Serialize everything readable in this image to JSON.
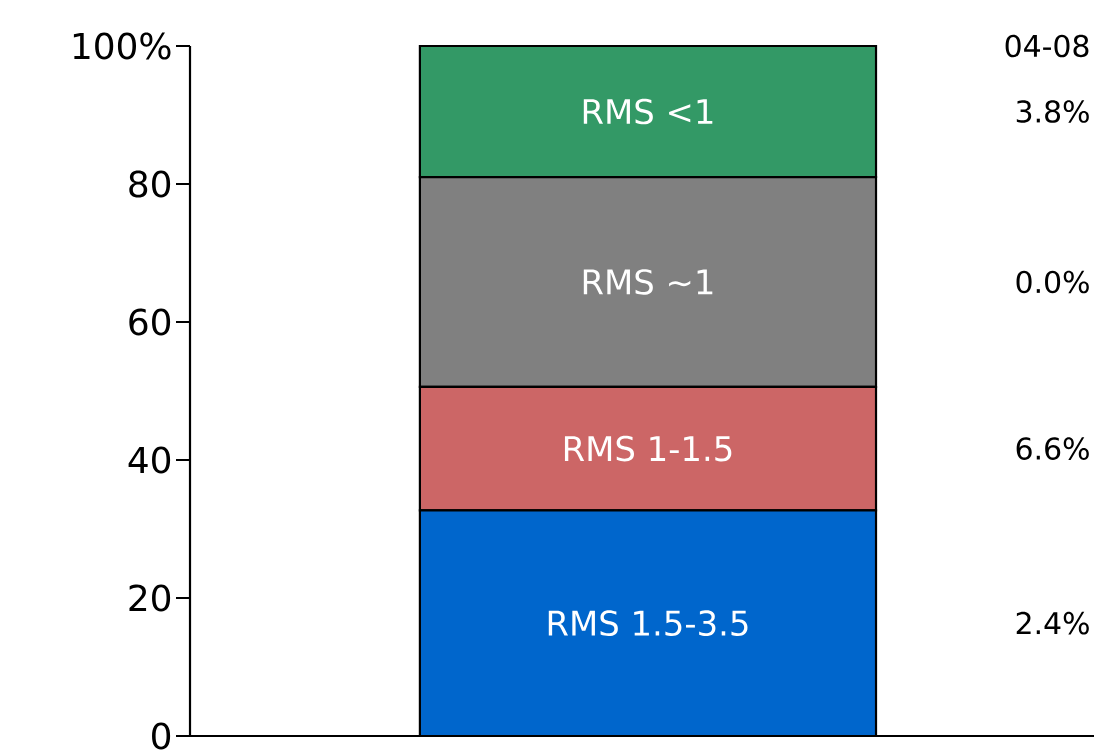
{
  "chart_data": {
    "type": "bar",
    "stacked": true,
    "categories": [
      null
    ],
    "series": [
      {
        "name": "RMS  1.5-3.5",
        "color": "#0066cc",
        "values": [
          32.7
        ]
      },
      {
        "name": "RMS  1-1.5",
        "color": "#cc6666",
        "values": [
          17.9
        ]
      },
      {
        "name": "RMS  ~1",
        "color": "#808080",
        "values": [
          30.4
        ]
      },
      {
        "name": "RMS  <1",
        "color": "#339966",
        "values": [
          19.0
        ]
      }
    ],
    "ylim": [
      0,
      100
    ],
    "yticks": [
      0,
      20,
      40,
      60,
      80,
      {
        "value": 100,
        "label": "100%"
      }
    ],
    "tick_labels": "y",
    "annotations": [
      "04-08",
      "3.8%",
      "0.0%",
      "6.6%",
      "2.4%"
    ]
  }
}
